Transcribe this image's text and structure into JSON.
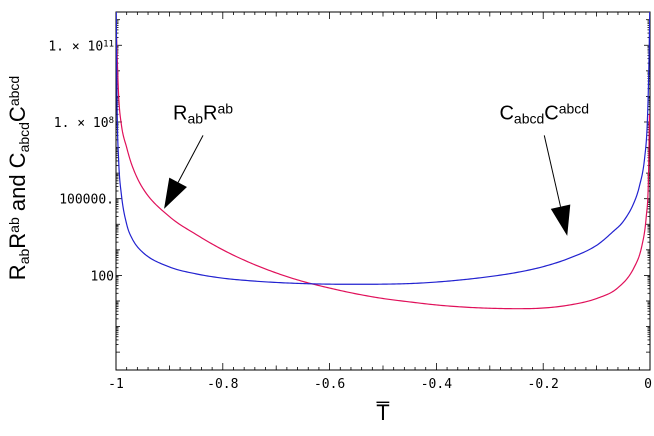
{
  "chart_data": {
    "type": "line",
    "title": "",
    "xlabel": "T̅",
    "ylabel": {
      "parts": [
        {
          "text": "R",
          "style": "base"
        },
        {
          "text": "ab",
          "style": "sub"
        },
        {
          "text": "R",
          "style": "base"
        },
        {
          "text": "ab",
          "style": "sup"
        },
        {
          "text": " and C",
          "style": "base"
        },
        {
          "text": "abcd",
          "style": "sub"
        },
        {
          "text": "C",
          "style": "base"
        },
        {
          "text": "abcd",
          "style": "sup"
        }
      ]
    },
    "xlim": [
      -1,
      0
    ],
    "ylim": [
      0.02,
      2000000000000.0
    ],
    "yscale": "log",
    "grid": false,
    "x_ticks": [
      {
        "value": -1,
        "label": "-1"
      },
      {
        "value": -0.8,
        "label": "-0.8"
      },
      {
        "value": -0.6,
        "label": "-0.6"
      },
      {
        "value": -0.4,
        "label": "-0.4"
      },
      {
        "value": -0.2,
        "label": "-0.2"
      },
      {
        "value": 0,
        "label": "0"
      }
    ],
    "y_ticks": [
      {
        "value": 100,
        "label": "100"
      },
      {
        "value": 100000,
        "label": "100000."
      },
      {
        "value": 100000000,
        "label": "1. × 10^8",
        "mantissa": "1. × 10",
        "exponent": "8"
      },
      {
        "value": 100000000000,
        "label": "1. × 10^11",
        "mantissa": "1. × 10",
        "exponent": "11"
      }
    ],
    "series": [
      {
        "id": "ricci",
        "color": "#e0105a",
        "x": [
          -0.999,
          -0.995,
          -0.99,
          -0.98,
          -0.97,
          -0.95,
          -0.9,
          -0.85,
          -0.8,
          -0.75,
          -0.7,
          -0.65,
          -0.6,
          -0.55,
          -0.5,
          -0.45,
          -0.4,
          -0.35,
          -0.3,
          -0.25,
          -0.2,
          -0.15,
          -0.1,
          -0.06,
          -0.03,
          -0.015,
          -0.007,
          -0.003,
          -0.001
        ],
        "y": [
          200000000000.0,
          1000000000.0,
          80000000.0,
          10000000.0,
          2000000.0,
          260000.0,
          20000.0,
          4000.0,
          1000.0,
          320,
          125,
          58,
          32,
          19,
          12.5,
          9.2,
          7.0,
          5.8,
          5.2,
          5.0,
          5.3,
          7.0,
          12.5,
          33,
          200,
          1500.0,
          20000.0,
          500000.0,
          200000000.0
        ]
      },
      {
        "id": "weyl",
        "color": "#2222d0",
        "x": [
          -0.9995,
          -0.998,
          -0.995,
          -0.99,
          -0.98,
          -0.97,
          -0.95,
          -0.9,
          -0.85,
          -0.8,
          -0.75,
          -0.7,
          -0.65,
          -0.6,
          -0.55,
          -0.5,
          -0.45,
          -0.4,
          -0.35,
          -0.3,
          -0.25,
          -0.2,
          -0.15,
          -0.1,
          -0.07,
          -0.05,
          -0.03,
          -0.02,
          -0.01,
          -0.005,
          -0.002,
          -0.0005
        ],
        "y": [
          2000000000000.0,
          500000000.0,
          3000000.0,
          150000.0,
          10000.0,
          2800.0,
          800,
          215,
          115,
          78,
          62,
          53,
          48,
          45.5,
          45,
          45.5,
          48,
          55,
          68,
          90,
          130,
          220,
          480,
          1500.0,
          5000.0,
          13000.0,
          70000.0,
          300000.0,
          4000000.0,
          100000000.0,
          20000000000.0,
          2000000000000.0
        ]
      }
    ],
    "annotations": [
      {
        "id": "ricci",
        "parts": [
          {
            "text": "R",
            "style": "base"
          },
          {
            "text": "ab",
            "style": "sub"
          },
          {
            "text": "R",
            "style": "base"
          },
          {
            "text": "ab",
            "style": "sup"
          }
        ],
        "arrow_tail": {
          "x": -0.837,
          "y": 30000000.0
        },
        "arrow_head": {
          "x": -0.91,
          "y": 40000.0
        }
      },
      {
        "id": "weyl",
        "parts": [
          {
            "text": "C",
            "style": "base"
          },
          {
            "text": "abcd",
            "style": "sub"
          },
          {
            "text": "C",
            "style": "base"
          },
          {
            "text": "abcd",
            "style": "sup"
          }
        ],
        "arrow_tail": {
          "x": -0.198,
          "y": 30000000.0
        },
        "arrow_head": {
          "x": -0.155,
          "y": 3500.0
        }
      }
    ]
  }
}
